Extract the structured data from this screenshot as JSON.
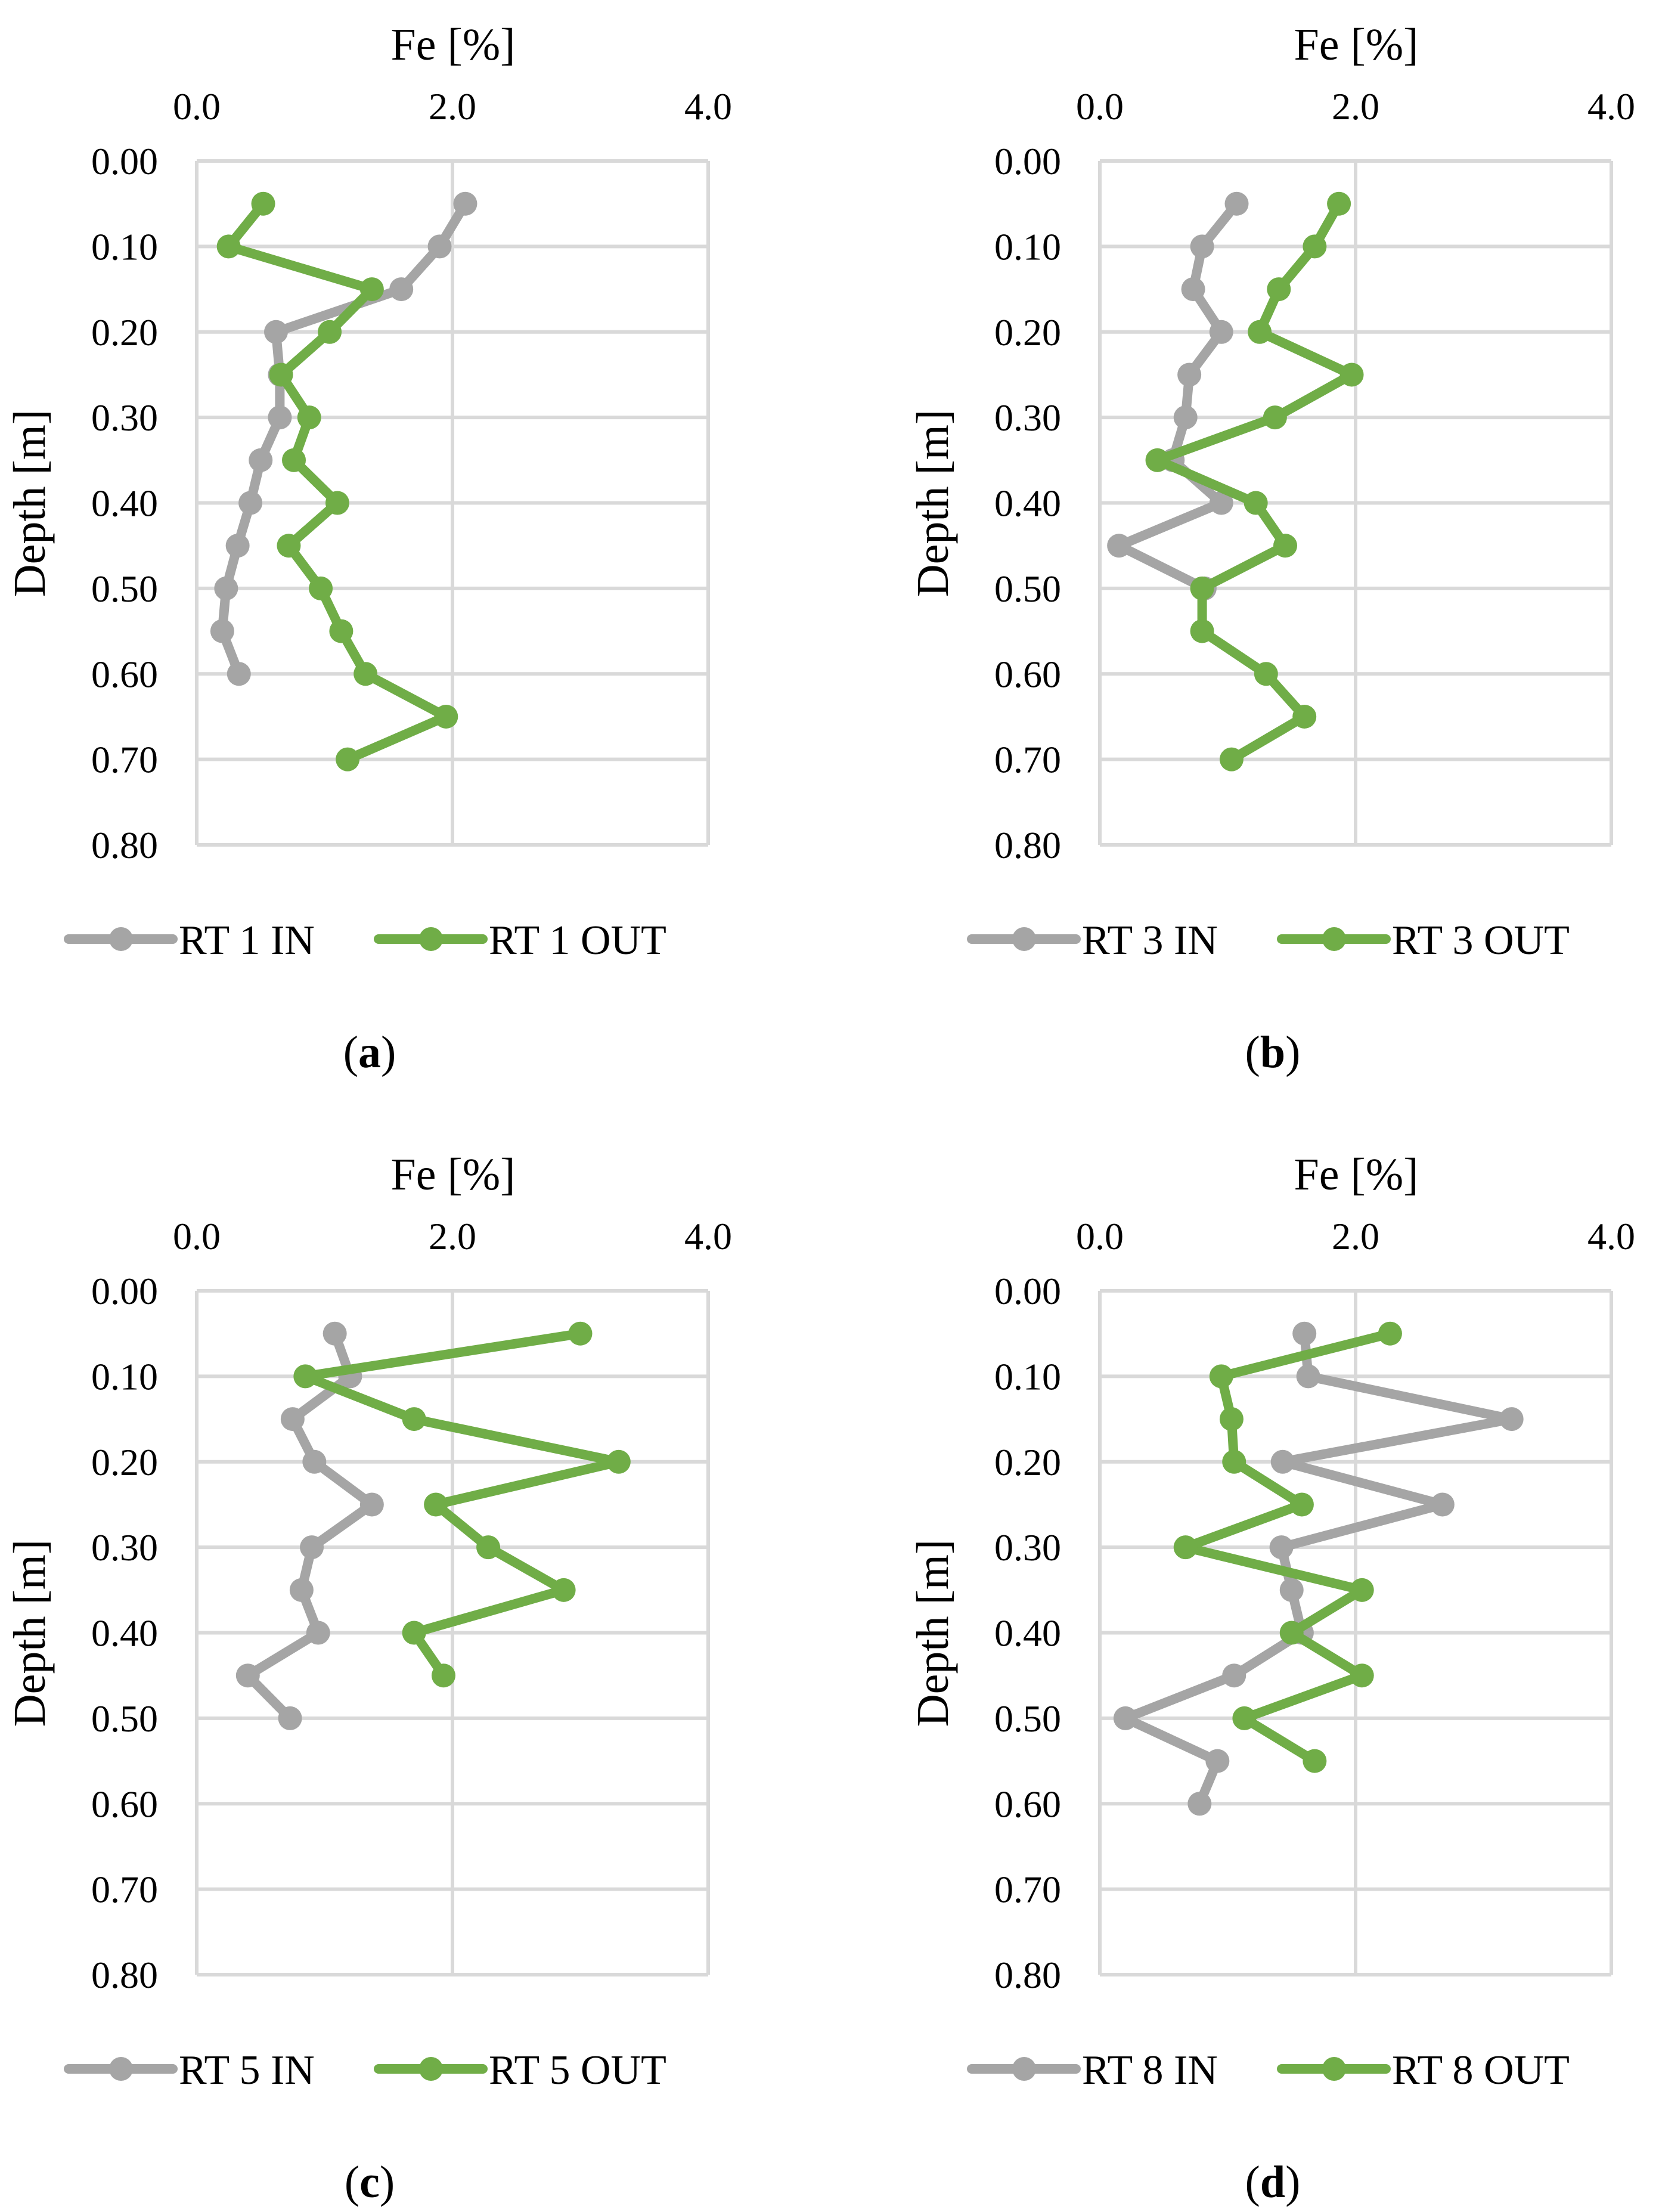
{
  "colors": {
    "in_series": "#a5a5a5",
    "out_series": "#70ad47",
    "grid": "#d9d9d9"
  },
  "chart_data": [
    {
      "type": "line",
      "panel_label": "(a)",
      "panel_letter": "a",
      "xlabel": "Fe [%]",
      "ylabel": "Depth [m]",
      "xlim": [
        0,
        4
      ],
      "ylim": [
        0,
        0.8
      ],
      "xticks": [
        "0.0",
        "2.0",
        "4.0"
      ],
      "yticks": [
        "0.00",
        "0.10",
        "0.20",
        "0.30",
        "0.40",
        "0.50",
        "0.60",
        "0.70",
        "0.80"
      ],
      "legend_position": "bottom",
      "series": [
        {
          "name": "RT 1 IN",
          "color": "#a5a5a5",
          "depth": [
            0.05,
            0.1,
            0.15,
            0.2,
            0.25,
            0.3,
            0.35,
            0.4,
            0.45,
            0.5,
            0.55,
            0.6
          ],
          "fe": [
            2.1,
            1.9,
            1.6,
            0.62,
            0.65,
            0.65,
            0.5,
            0.42,
            0.32,
            0.23,
            0.2,
            0.33
          ]
        },
        {
          "name": "RT 1 OUT",
          "color": "#70ad47",
          "depth": [
            0.05,
            0.1,
            0.15,
            0.2,
            0.25,
            0.3,
            0.35,
            0.4,
            0.45,
            0.5,
            0.55,
            0.6,
            0.65,
            0.7
          ],
          "fe": [
            0.52,
            0.25,
            1.37,
            1.04,
            0.66,
            0.88,
            0.76,
            1.1,
            0.72,
            0.97,
            1.13,
            1.32,
            1.95,
            1.18
          ]
        }
      ]
    },
    {
      "type": "line",
      "panel_label": "(b)",
      "panel_letter": "b",
      "xlabel": "Fe [%]",
      "ylabel": "Depth [m]",
      "xlim": [
        0,
        4
      ],
      "ylim": [
        0,
        0.8
      ],
      "xticks": [
        "0.0",
        "2.0",
        "4.0"
      ],
      "yticks": [
        "0.00",
        "0.10",
        "0.20",
        "0.30",
        "0.40",
        "0.50",
        "0.60",
        "0.70",
        "0.80"
      ],
      "legend_position": "bottom",
      "series": [
        {
          "name": "RT 3 IN",
          "color": "#a5a5a5",
          "depth": [
            0.05,
            0.1,
            0.15,
            0.2,
            0.25,
            0.3,
            0.35,
            0.4,
            0.45,
            0.5
          ],
          "fe": [
            1.07,
            0.8,
            0.73,
            0.95,
            0.7,
            0.67,
            0.57,
            0.95,
            0.15,
            0.82
          ]
        },
        {
          "name": "RT 3 OUT",
          "color": "#70ad47",
          "depth": [
            0.05,
            0.1,
            0.15,
            0.2,
            0.25,
            0.3,
            0.35,
            0.4,
            0.45,
            0.5,
            0.55,
            0.6,
            0.65,
            0.7
          ],
          "fe": [
            1.87,
            1.68,
            1.4,
            1.25,
            1.97,
            1.37,
            0.45,
            1.22,
            1.45,
            0.8,
            0.8,
            1.3,
            1.6,
            1.03
          ]
        }
      ]
    },
    {
      "type": "line",
      "panel_label": "(c)",
      "panel_letter": "c",
      "xlabel": "Fe [%]",
      "ylabel": "Depth [m]",
      "xlim": [
        0,
        4
      ],
      "ylim": [
        0,
        0.8
      ],
      "xticks": [
        "0.0",
        "2.0",
        "4.0"
      ],
      "yticks": [
        "0.00",
        "0.10",
        "0.20",
        "0.30",
        "0.40",
        "0.50",
        "0.60",
        "0.70",
        "0.80"
      ],
      "legend_position": "bottom",
      "series": [
        {
          "name": "RT 5 IN",
          "color": "#a5a5a5",
          "depth": [
            0.05,
            0.1,
            0.15,
            0.2,
            0.25,
            0.3,
            0.35,
            0.4,
            0.45,
            0.5
          ],
          "fe": [
            1.08,
            1.2,
            0.75,
            0.92,
            1.37,
            0.9,
            0.82,
            0.95,
            0.4,
            0.73
          ]
        },
        {
          "name": "RT 5 OUT",
          "color": "#70ad47",
          "depth": [
            0.05,
            0.1,
            0.15,
            0.2,
            0.25,
            0.3,
            0.35,
            0.4,
            0.45
          ],
          "fe": [
            3.0,
            0.85,
            1.7,
            3.3,
            1.87,
            2.28,
            2.87,
            1.7,
            1.93
          ]
        }
      ]
    },
    {
      "type": "line",
      "panel_label": "(d)",
      "panel_letter": "d",
      "xlabel": "Fe [%]",
      "ylabel": "Depth [m]",
      "xlim": [
        0,
        4
      ],
      "ylim": [
        0,
        0.8
      ],
      "xticks": [
        "0.0",
        "2.0",
        "4.0"
      ],
      "yticks": [
        "0.00",
        "0.10",
        "0.20",
        "0.30",
        "0.40",
        "0.50",
        "0.60",
        "0.70",
        "0.80"
      ],
      "legend_position": "bottom",
      "series": [
        {
          "name": "RT 8 IN",
          "color": "#a5a5a5",
          "depth": [
            0.05,
            0.1,
            0.15,
            0.2,
            0.25,
            0.3,
            0.35,
            0.4,
            0.45,
            0.5,
            0.55,
            0.6
          ],
          "fe": [
            1.6,
            1.63,
            3.22,
            1.43,
            2.68,
            1.42,
            1.5,
            1.58,
            1.05,
            0.2,
            0.92,
            0.78
          ]
        },
        {
          "name": "RT 8 OUT",
          "color": "#70ad47",
          "depth": [
            0.05,
            0.1,
            0.15,
            0.2,
            0.25,
            0.3,
            0.35,
            0.4,
            0.45,
            0.5,
            0.55
          ],
          "fe": [
            2.27,
            0.95,
            1.03,
            1.05,
            1.58,
            0.67,
            2.05,
            1.5,
            2.05,
            1.13,
            1.68
          ]
        }
      ]
    }
  ]
}
